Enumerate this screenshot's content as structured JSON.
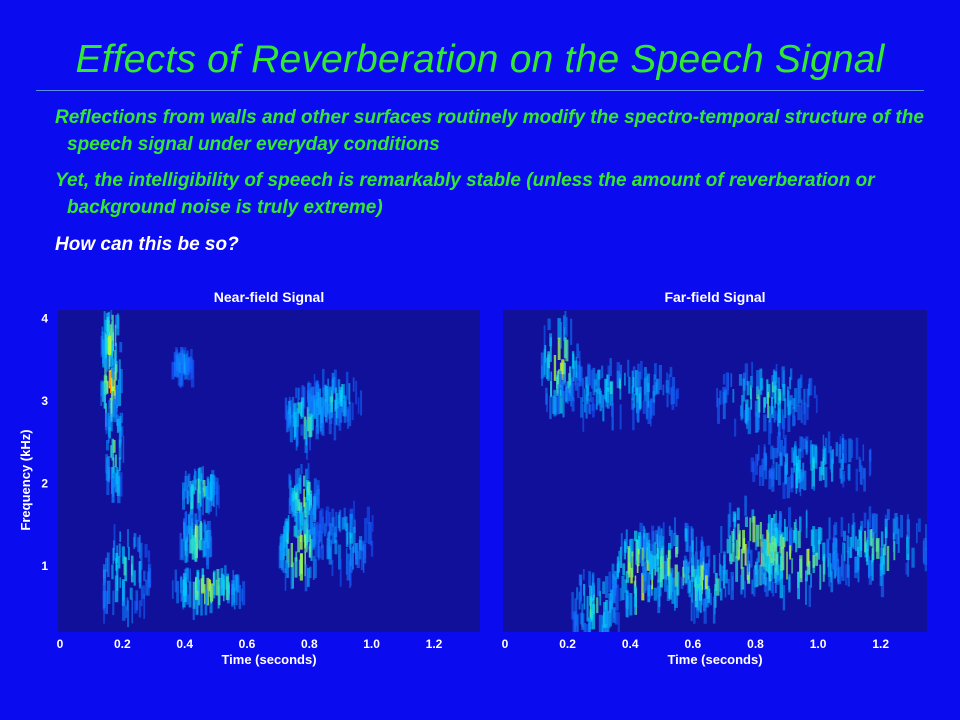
{
  "slide": {
    "title": "Effects of Reverberation on the Speech Signal",
    "bullets": [
      "Reflections from walls and other surfaces routinely modify the spectro-temporal structure of the speech signal under everyday conditions",
      "Yet, the intelligibility of speech is remarkably stable (unless the amount of reverberation or background noise is truly extreme)",
      "How can this be so?"
    ]
  },
  "colors": {
    "background": "#0b0bf0",
    "title": "#33e833",
    "bullet_text": "#33e833",
    "question_text": "#ffffff",
    "plot_background": "#10109a"
  },
  "figure": {
    "ylabel": "Frequency (kHz)",
    "yticks": [
      "1",
      "2",
      "3",
      "4"
    ],
    "xlabel": "Time (seconds)",
    "xticks": [
      "0",
      "0.2",
      "0.4",
      "0.6",
      "0.8",
      "1.0",
      "1.2"
    ],
    "panels": [
      {
        "title": "Near-field Signal",
        "blobs": [
          {
            "t": 0.16,
            "f": 3.2,
            "dt": 0.02,
            "df": 0.5,
            "v": 1.0
          },
          {
            "t": 0.16,
            "f": 3.7,
            "dt": 0.02,
            "df": 0.3,
            "v": 0.8
          },
          {
            "t": 0.17,
            "f": 2.4,
            "dt": 0.02,
            "df": 0.5,
            "v": 0.6
          },
          {
            "t": 0.2,
            "f": 0.9,
            "dt": 0.05,
            "df": 0.5,
            "v": 0.5
          },
          {
            "t": 0.38,
            "f": 3.4,
            "dt": 0.02,
            "df": 0.1,
            "v": 0.3
          },
          {
            "t": 0.43,
            "f": 1.9,
            "dt": 0.04,
            "df": 0.15,
            "v": 0.6
          },
          {
            "t": 0.42,
            "f": 1.3,
            "dt": 0.03,
            "df": 0.2,
            "v": 0.7
          },
          {
            "t": 0.46,
            "f": 0.7,
            "dt": 0.07,
            "df": 0.15,
            "v": 0.75
          },
          {
            "t": 0.74,
            "f": 1.2,
            "dt": 0.04,
            "df": 0.35,
            "v": 0.9
          },
          {
            "t": 0.75,
            "f": 1.8,
            "dt": 0.03,
            "df": 0.25,
            "v": 0.7
          },
          {
            "t": 0.76,
            "f": 2.8,
            "dt": 0.04,
            "df": 0.25,
            "v": 0.6
          },
          {
            "t": 0.85,
            "f": 3.0,
            "dt": 0.06,
            "df": 0.2,
            "v": 0.45
          },
          {
            "t": 0.88,
            "f": 1.3,
            "dt": 0.06,
            "df": 0.3,
            "v": 0.4
          }
        ]
      },
      {
        "title": "Far-field Signal",
        "blobs": [
          {
            "t": 0.17,
            "f": 3.4,
            "dt": 0.04,
            "df": 0.5,
            "v": 0.75
          },
          {
            "t": 0.35,
            "f": 3.1,
            "dt": 0.12,
            "df": 0.25,
            "v": 0.45
          },
          {
            "t": 0.42,
            "f": 0.9,
            "dt": 0.06,
            "df": 0.4,
            "v": 0.9
          },
          {
            "t": 0.52,
            "f": 1.0,
            "dt": 0.07,
            "df": 0.35,
            "v": 0.75
          },
          {
            "t": 0.62,
            "f": 0.8,
            "dt": 0.05,
            "df": 0.3,
            "v": 0.7
          },
          {
            "t": 0.77,
            "f": 1.2,
            "dt": 0.07,
            "df": 0.45,
            "v": 1.0
          },
          {
            "t": 0.9,
            "f": 1.1,
            "dt": 0.1,
            "df": 0.4,
            "v": 0.75
          },
          {
            "t": 0.95,
            "f": 2.2,
            "dt": 0.12,
            "df": 0.25,
            "v": 0.45
          },
          {
            "t": 0.8,
            "f": 3.0,
            "dt": 0.1,
            "df": 0.3,
            "v": 0.5
          },
          {
            "t": 1.15,
            "f": 1.2,
            "dt": 0.1,
            "df": 0.3,
            "v": 0.6
          },
          {
            "t": 0.28,
            "f": 0.5,
            "dt": 0.05,
            "df": 0.3,
            "v": 0.55
          }
        ]
      }
    ]
  }
}
